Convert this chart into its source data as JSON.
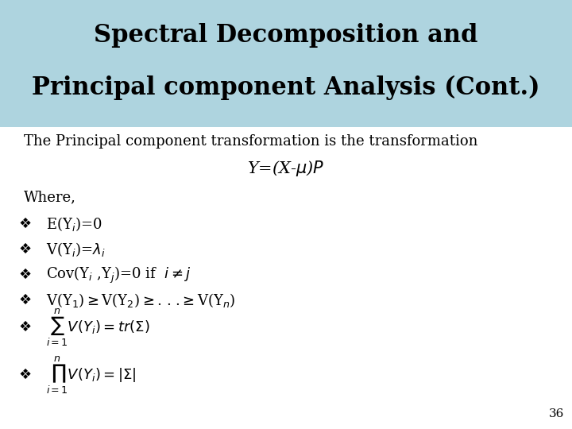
{
  "title_line1": "Spectral Decomposition and",
  "title_line2": "Principal component Analysis (Cont.)",
  "title_bg_color": "#aed4df",
  "bg_color": "#ffffff",
  "title_fontsize": 22,
  "body_fontsize": 13,
  "slide_number": "36",
  "intro_text": "The Principal component transformation is the transformation"
}
